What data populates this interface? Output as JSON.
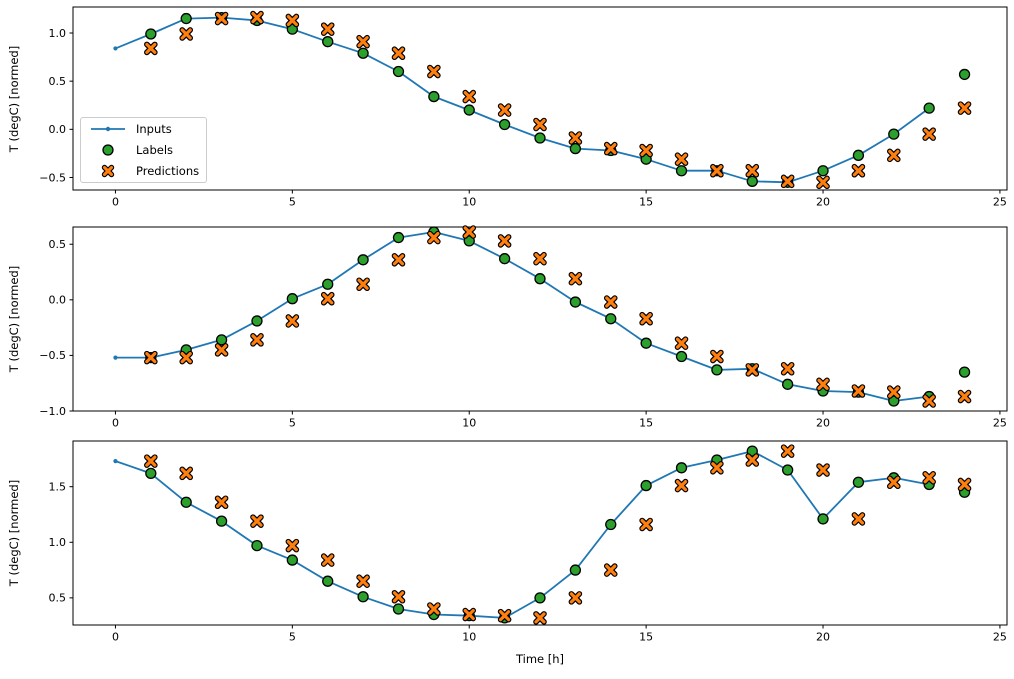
{
  "figure": {
    "xlabel": "Time [h]",
    "ylabel": "T (degC) [normed]",
    "background": "#ffffff",
    "legend": [
      {
        "label": "Inputs",
        "marker": "line-dot",
        "color": "#1f77b4"
      },
      {
        "label": "Labels",
        "marker": "circle",
        "color": "#2ca02c"
      },
      {
        "label": "Predictions",
        "marker": "x",
        "color": "#ff7f0e"
      }
    ]
  },
  "chart_data": [
    {
      "type": "line",
      "title": "",
      "xlabel": "",
      "ylabel": "T (degC) [normed]",
      "xlim": [
        -1.2,
        25.2
      ],
      "ylim": [
        -0.63,
        1.27
      ],
      "x_ticks": [
        0,
        5,
        10,
        15,
        20,
        25
      ],
      "x_tick_labels": [
        "0",
        "5",
        "10",
        "15",
        "20",
        "25"
      ],
      "y_ticks": [
        1.0,
        0.5,
        0.0,
        -0.5
      ],
      "y_tick_labels": [
        "1.0",
        "0.5",
        "0.0",
        "−0.5"
      ],
      "grid": false,
      "legend_position": "center left",
      "series": [
        {
          "name": "Inputs",
          "style": "line-dot",
          "color": "#1f77b4",
          "edge": "#1f77b4",
          "x": [
            0,
            1,
            2,
            3,
            4,
            5,
            6,
            7,
            8,
            9,
            10,
            11,
            12,
            13,
            14,
            15,
            16,
            17,
            18,
            19,
            20,
            21,
            22,
            23
          ],
          "values": [
            0.84,
            0.99,
            1.15,
            1.16,
            1.13,
            1.04,
            0.91,
            0.79,
            0.6,
            0.34,
            0.2,
            0.05,
            -0.09,
            -0.2,
            -0.22,
            -0.31,
            -0.43,
            -0.43,
            -0.54,
            -0.55,
            -0.43,
            -0.27,
            -0.05,
            0.22
          ]
        },
        {
          "name": "Labels",
          "style": "circle",
          "color": "#2ca02c",
          "edge": "#000000",
          "x": [
            1,
            2,
            3,
            4,
            5,
            6,
            7,
            8,
            9,
            10,
            11,
            12,
            13,
            14,
            15,
            16,
            17,
            18,
            19,
            20,
            21,
            22,
            23,
            24
          ],
          "values": [
            0.99,
            1.15,
            1.16,
            1.13,
            1.04,
            0.91,
            0.79,
            0.6,
            0.34,
            0.2,
            0.05,
            -0.09,
            -0.2,
            -0.22,
            -0.31,
            -0.43,
            -0.43,
            -0.54,
            -0.55,
            -0.43,
            -0.27,
            -0.05,
            0.22,
            0.57
          ]
        },
        {
          "name": "Predictions",
          "style": "x",
          "color": "#ff7f0e",
          "edge": "#000000",
          "x": [
            1,
            2,
            3,
            4,
            5,
            6,
            7,
            8,
            9,
            10,
            11,
            12,
            13,
            14,
            15,
            16,
            17,
            18,
            19,
            20,
            21,
            22,
            23,
            24
          ],
          "values": [
            0.84,
            0.99,
            1.15,
            1.16,
            1.13,
            1.04,
            0.91,
            0.79,
            0.6,
            0.34,
            0.2,
            0.05,
            -0.09,
            -0.2,
            -0.22,
            -0.31,
            -0.43,
            -0.43,
            -0.54,
            -0.55,
            -0.43,
            -0.27,
            -0.05,
            0.22
          ]
        }
      ]
    },
    {
      "type": "line",
      "title": "",
      "xlabel": "",
      "ylabel": "T (degC) [normed]",
      "xlim": [
        -1.2,
        25.2
      ],
      "ylim": [
        -1.0,
        0.655
      ],
      "x_ticks": [
        0,
        5,
        10,
        15,
        20,
        25
      ],
      "x_tick_labels": [
        "0",
        "5",
        "10",
        "15",
        "20",
        "25"
      ],
      "y_ticks": [
        0.5,
        0.0,
        -0.5,
        -1.0
      ],
      "y_tick_labels": [
        "0.5",
        "0.0",
        "−0.5",
        "−1.0"
      ],
      "grid": false,
      "legend_position": "none",
      "series": [
        {
          "name": "Inputs",
          "style": "line-dot",
          "color": "#1f77b4",
          "edge": "#1f77b4",
          "x": [
            0,
            1,
            2,
            3,
            4,
            5,
            6,
            7,
            8,
            9,
            10,
            11,
            12,
            13,
            14,
            15,
            16,
            17,
            18,
            19,
            20,
            21,
            22,
            23
          ],
          "values": [
            -0.52,
            -0.52,
            -0.45,
            -0.36,
            -0.19,
            0.01,
            0.14,
            0.36,
            0.56,
            0.61,
            0.53,
            0.37,
            0.19,
            -0.02,
            -0.17,
            -0.39,
            -0.51,
            -0.63,
            -0.62,
            -0.76,
            -0.82,
            -0.83,
            -0.91,
            -0.87
          ]
        },
        {
          "name": "Labels",
          "style": "circle",
          "color": "#2ca02c",
          "edge": "#000000",
          "x": [
            1,
            2,
            3,
            4,
            5,
            6,
            7,
            8,
            9,
            10,
            11,
            12,
            13,
            14,
            15,
            16,
            17,
            18,
            19,
            20,
            21,
            22,
            23,
            24
          ],
          "values": [
            -0.52,
            -0.45,
            -0.36,
            -0.19,
            0.01,
            0.14,
            0.36,
            0.56,
            0.61,
            0.53,
            0.37,
            0.19,
            -0.02,
            -0.17,
            -0.39,
            -0.51,
            -0.63,
            -0.62,
            -0.76,
            -0.82,
            -0.83,
            -0.91,
            -0.87,
            -0.65
          ]
        },
        {
          "name": "Predictions",
          "style": "x",
          "color": "#ff7f0e",
          "edge": "#000000",
          "x": [
            1,
            2,
            3,
            4,
            5,
            6,
            7,
            8,
            9,
            10,
            11,
            12,
            13,
            14,
            15,
            16,
            17,
            18,
            19,
            20,
            21,
            22,
            23,
            24
          ],
          "values": [
            -0.52,
            -0.52,
            -0.45,
            -0.36,
            -0.19,
            0.01,
            0.14,
            0.36,
            0.56,
            0.61,
            0.53,
            0.37,
            0.19,
            -0.02,
            -0.17,
            -0.39,
            -0.51,
            -0.63,
            -0.62,
            -0.76,
            -0.82,
            -0.83,
            -0.91,
            -0.87
          ]
        }
      ]
    },
    {
      "type": "line",
      "title": "",
      "xlabel": "Time [h]",
      "ylabel": "T (degC) [normed]",
      "xlim": [
        -1.2,
        25.2
      ],
      "ylim": [
        0.256,
        1.911
      ],
      "x_ticks": [
        0,
        5,
        10,
        15,
        20,
        25
      ],
      "x_tick_labels": [
        "0",
        "5",
        "10",
        "15",
        "20",
        "25"
      ],
      "y_ticks": [
        1.5,
        1.0,
        0.5
      ],
      "y_tick_labels": [
        "1.5",
        "1.0",
        "0.5"
      ],
      "grid": false,
      "legend_position": "none",
      "series": [
        {
          "name": "Inputs",
          "style": "line-dot",
          "color": "#1f77b4",
          "edge": "#1f77b4",
          "x": [
            0,
            1,
            2,
            3,
            4,
            5,
            6,
            7,
            8,
            9,
            10,
            11,
            12,
            13,
            14,
            15,
            16,
            17,
            18,
            19,
            20,
            21,
            22,
            23
          ],
          "values": [
            1.73,
            1.62,
            1.36,
            1.19,
            0.97,
            0.84,
            0.65,
            0.51,
            0.4,
            0.35,
            0.34,
            0.32,
            0.5,
            0.75,
            1.16,
            1.51,
            1.67,
            1.74,
            1.82,
            1.65,
            1.21,
            1.54,
            1.58,
            1.52
          ]
        },
        {
          "name": "Labels",
          "style": "circle",
          "color": "#2ca02c",
          "edge": "#000000",
          "x": [
            1,
            2,
            3,
            4,
            5,
            6,
            7,
            8,
            9,
            10,
            11,
            12,
            13,
            14,
            15,
            16,
            17,
            18,
            19,
            20,
            21,
            22,
            23,
            24
          ],
          "values": [
            1.62,
            1.36,
            1.19,
            0.97,
            0.84,
            0.65,
            0.51,
            0.4,
            0.35,
            0.34,
            0.32,
            0.5,
            0.75,
            1.16,
            1.51,
            1.67,
            1.74,
            1.82,
            1.65,
            1.21,
            1.54,
            1.58,
            1.52,
            1.45
          ]
        },
        {
          "name": "Predictions",
          "style": "x",
          "color": "#ff7f0e",
          "edge": "#000000",
          "x": [
            1,
            2,
            3,
            4,
            5,
            6,
            7,
            8,
            9,
            10,
            11,
            12,
            13,
            14,
            15,
            16,
            17,
            18,
            19,
            20,
            21,
            22,
            23,
            24
          ],
          "values": [
            1.73,
            1.62,
            1.36,
            1.19,
            0.97,
            0.84,
            0.65,
            0.51,
            0.4,
            0.35,
            0.34,
            0.32,
            0.5,
            0.75,
            1.16,
            1.51,
            1.67,
            1.74,
            1.82,
            1.65,
            1.21,
            1.54,
            1.58,
            1.52
          ]
        }
      ]
    }
  ]
}
